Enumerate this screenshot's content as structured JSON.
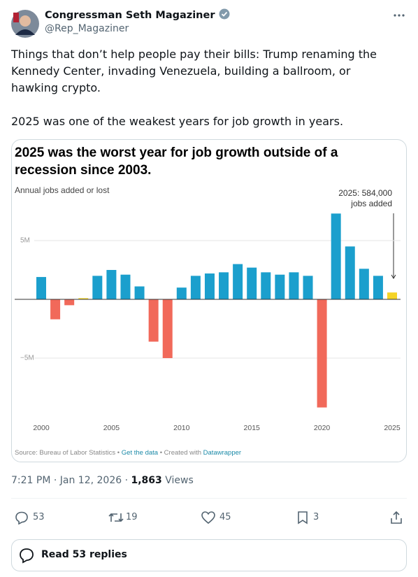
{
  "tweet": {
    "name": "Congressman Seth Magaziner",
    "handle": "@Rep_Magaziner",
    "paragraphs": [
      "Things that don’t help people pay their bills: Trump renaming the Kennedy Center, invading Venezuela, building a ballroom, or hawking crypto.",
      "2025 was one of the weakest years for job growth in years."
    ],
    "timestamp": "7:21 PM · Jan 12, 2026 ·",
    "views": "1,863",
    "views_label": "Views",
    "replies": 53,
    "reposts": 19,
    "likes": 45,
    "bookmarks": 3,
    "read_replies": "Read 53 replies"
  },
  "chart_data": {
    "type": "bar",
    "title": [
      "2025 was the worst year for job growth outside of a",
      "recession since 2003."
    ],
    "subtitle": "Annual jobs added or lost",
    "annotation": [
      "2025: 584,000",
      "jobs added"
    ],
    "source": "Source: Bureau of Labor Statistics •",
    "data_link": "Get the data",
    "created": "• Created with",
    "tool": "Datawrapper",
    "categories": [
      "2000",
      null,
      null,
      null,
      null,
      "2005",
      null,
      null,
      null,
      null,
      "2010",
      null,
      null,
      null,
      null,
      "2015",
      null,
      null,
      null,
      null,
      "2020",
      null,
      null,
      null,
      null,
      "2025"
    ],
    "values": [
      1.9,
      -1.7,
      -0.5,
      0.1,
      2.0,
      2.5,
      2.1,
      1.1,
      -3.6,
      -5.0,
      1.0,
      2.0,
      2.2,
      2.3,
      3.0,
      2.7,
      2.3,
      2.1,
      2.3,
      2.0,
      -9.2,
      7.3,
      4.5,
      2.6,
      2.0,
      0.584
    ],
    "colors": [
      "#1b9fcd",
      "#f1695a",
      "#f1695a",
      "#f5d426",
      "#1b9fcd",
      "#1b9fcd",
      "#1b9fcd",
      "#1b9fcd",
      "#f1695a",
      "#f1695a",
      "#1b9fcd",
      "#1b9fcd",
      "#1b9fcd",
      "#1b9fcd",
      "#1b9fcd",
      "#1b9fcd",
      "#1b9fcd",
      "#1b9fcd",
      "#1b9fcd",
      "#1b9fcd",
      "#f1695a",
      "#1b9fcd",
      "#1b9fcd",
      "#1b9fcd",
      "#1b9fcd",
      "#f5d426"
    ],
    "ylim": [
      -9.7,
      8.2
    ],
    "yticks": [
      {
        "value": 5,
        "label": "5M"
      },
      {
        "value": -5,
        "label": "−5M"
      }
    ],
    "grid": true
  }
}
